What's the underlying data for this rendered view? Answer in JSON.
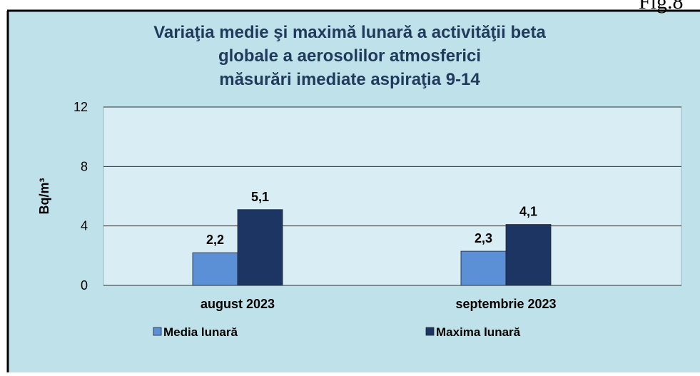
{
  "caption": "Fig.8",
  "chart_data": {
    "type": "bar",
    "title": [
      "Variaţia medie şi maximă lunară a activităţii beta",
      "globale  a aerosolilor atmosferici",
      "măsurări imediate aspiraţia 9-14"
    ],
    "y_label": "Bq/m³",
    "categories": [
      "august 2023",
      "septembrie 2023"
    ],
    "series": [
      {
        "name": "Media lunară",
        "color": "#5b8fd6",
        "values": [
          2.2,
          2.3
        ],
        "value_labels": [
          "2,2",
          "2,3"
        ]
      },
      {
        "name": "Maxima lunară",
        "color": "#1c3563",
        "values": [
          5.1,
          4.1
        ],
        "value_labels": [
          "5,1",
          "4,1"
        ]
      }
    ],
    "ylim": [
      0,
      12
    ],
    "yticks": [
      0,
      4,
      8,
      12
    ],
    "grid": true
  }
}
